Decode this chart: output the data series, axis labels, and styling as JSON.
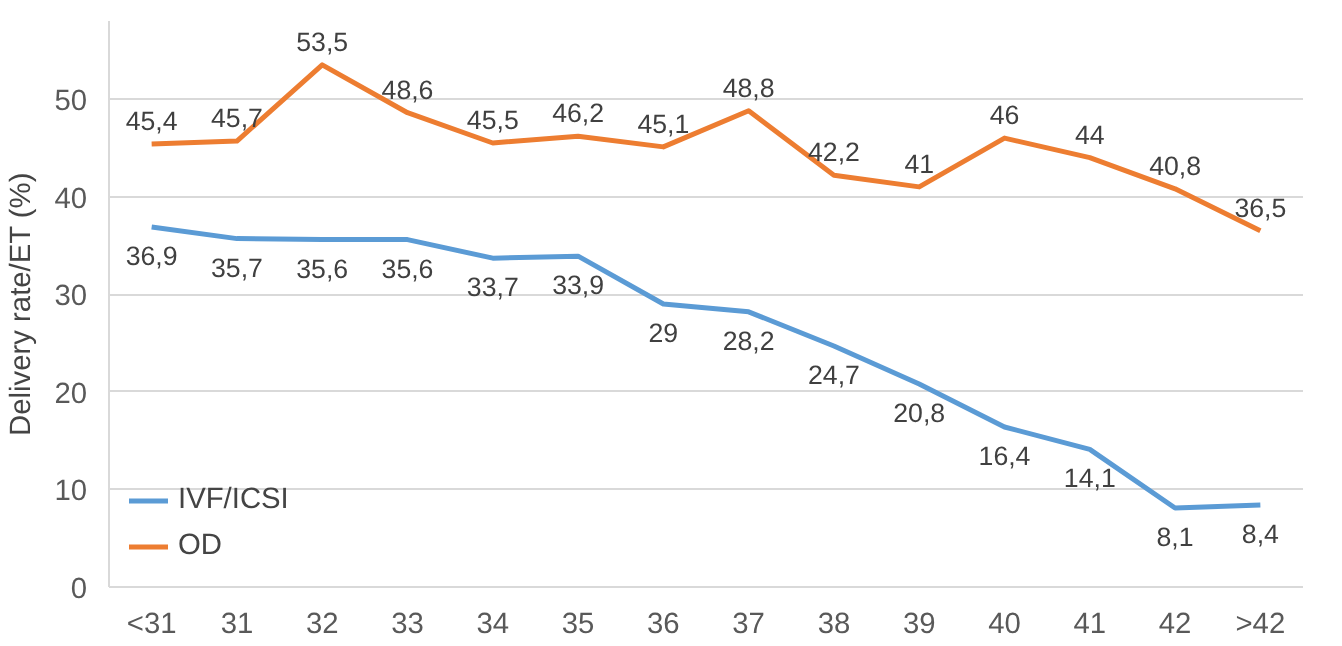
{
  "chart_data": {
    "type": "line",
    "ylabel": "Delivery rate/ET (%)",
    "categories": [
      "<31",
      "31",
      "32",
      "33",
      "34",
      "35",
      "36",
      "37",
      "38",
      "39",
      "40",
      "41",
      "42",
      ">42"
    ],
    "series": [
      {
        "name": "IVF/ICSI",
        "color": "#5b9bd5",
        "values": [
          36.9,
          35.7,
          35.6,
          35.6,
          33.7,
          33.9,
          29,
          28.2,
          24.7,
          20.8,
          16.4,
          14.1,
          8.1,
          8.4
        ],
        "value_labels": [
          "36,9",
          "35,7",
          "35,6",
          "35,6",
          "33,7",
          "33,9",
          "29",
          "28,2",
          "24,7",
          "20,8",
          "16,4",
          "14,1",
          "8,1",
          "8,4"
        ]
      },
      {
        "name": "OD",
        "color": "#ed7d31",
        "values": [
          45.4,
          45.7,
          53.5,
          48.6,
          45.5,
          46.2,
          45.1,
          48.8,
          42.2,
          41,
          46,
          44,
          40.8,
          36.5
        ],
        "value_labels": [
          "45,4",
          "45,7",
          "53,5",
          "48,6",
          "45,5",
          "46,2",
          "45,1",
          "48,8",
          "42,2",
          "41",
          "46",
          "44",
          "40,8",
          "36,5"
        ]
      }
    ],
    "ylim": [
      0,
      58
    ],
    "yticks": [
      0,
      10,
      20,
      30,
      40,
      50
    ],
    "grid": "y",
    "legend": "bottom left",
    "line_style": "solid",
    "marker": "none"
  }
}
